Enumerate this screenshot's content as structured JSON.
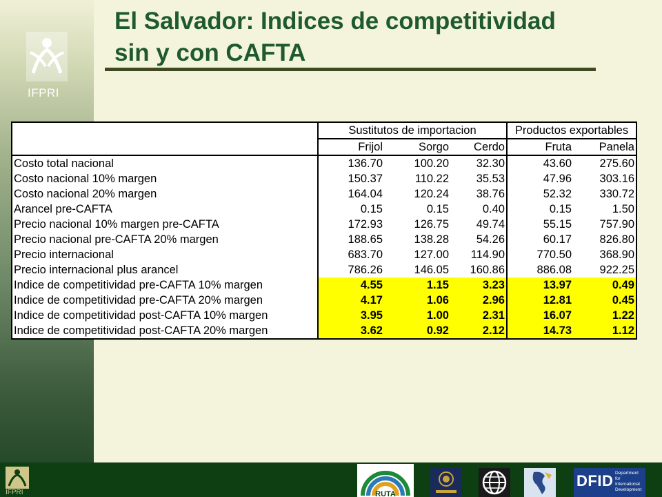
{
  "title": "El Salvador: Indices de competitividad sin y con CAFTA",
  "branding": {
    "ifpri_label": "IFPRI",
    "footer_ifpri_label": "IFPRI",
    "ruta_label": "RUTA",
    "dfid_label": "DFID",
    "dfid_sub": "Department for International Development"
  },
  "table": {
    "group_headers": [
      "Sustitutos de importacion",
      "Productos exportables"
    ],
    "columns": [
      "Frijol",
      "Sorgo",
      "Cerdo",
      "Fruta",
      "Panela"
    ],
    "rows": [
      {
        "label": "Costo total nacional",
        "values": [
          "136.70",
          "100.20",
          "32.30",
          "43.60",
          "275.60"
        ]
      },
      {
        "label": "Costo nacional 10% margen",
        "values": [
          "150.37",
          "110.22",
          "35.53",
          "47.96",
          "303.16"
        ]
      },
      {
        "label": "Costo nacional 20% margen",
        "values": [
          "164.04",
          "120.24",
          "38.76",
          "52.32",
          "330.72"
        ]
      },
      {
        "label": "Arancel pre-CAFTA",
        "values": [
          "0.15",
          "0.15",
          "0.40",
          "0.15",
          "1.50"
        ]
      },
      {
        "label": "Precio nacional 10% margen pre-CAFTA",
        "values": [
          "172.93",
          "126.75",
          "49.74",
          "55.15",
          "757.90"
        ]
      },
      {
        "label": "Precio nacional pre-CAFTA 20% margen",
        "values": [
          "188.65",
          "138.28",
          "54.26",
          "60.17",
          "826.80"
        ]
      },
      {
        "label": "Precio internacional",
        "values": [
          "683.70",
          "127.00",
          "114.90",
          "770.50",
          "368.90"
        ]
      },
      {
        "label": "Precio internacional plus arancel",
        "values": [
          "786.26",
          "146.05",
          "160.86",
          "886.08",
          "922.25"
        ]
      },
      {
        "label": "Indice de competitividad pre-CAFTA 10% margen",
        "values": [
          "4.55",
          "1.15",
          "3.23",
          "13.97",
          "0.49"
        ]
      },
      {
        "label": "Indice de competitividad pre-CAFTA 20% margen",
        "values": [
          "4.17",
          "1.06",
          "2.96",
          "12.81",
          "0.45"
        ]
      },
      {
        "label": "Indice de competitividad post-CAFTA 10% margen",
        "values": [
          "3.95",
          "1.00",
          "2.31",
          "16.07",
          "1.22"
        ]
      },
      {
        "label": "Indice de competitividad post-CAFTA 20% margen",
        "values": [
          "3.62",
          "0.92",
          "2.12",
          "14.73",
          "1.12"
        ]
      }
    ],
    "highlight_color": "#ffff00"
  },
  "colors": {
    "title": "#1f5a2e",
    "background": "#f4f4dc",
    "footer": "#0d3f12"
  }
}
